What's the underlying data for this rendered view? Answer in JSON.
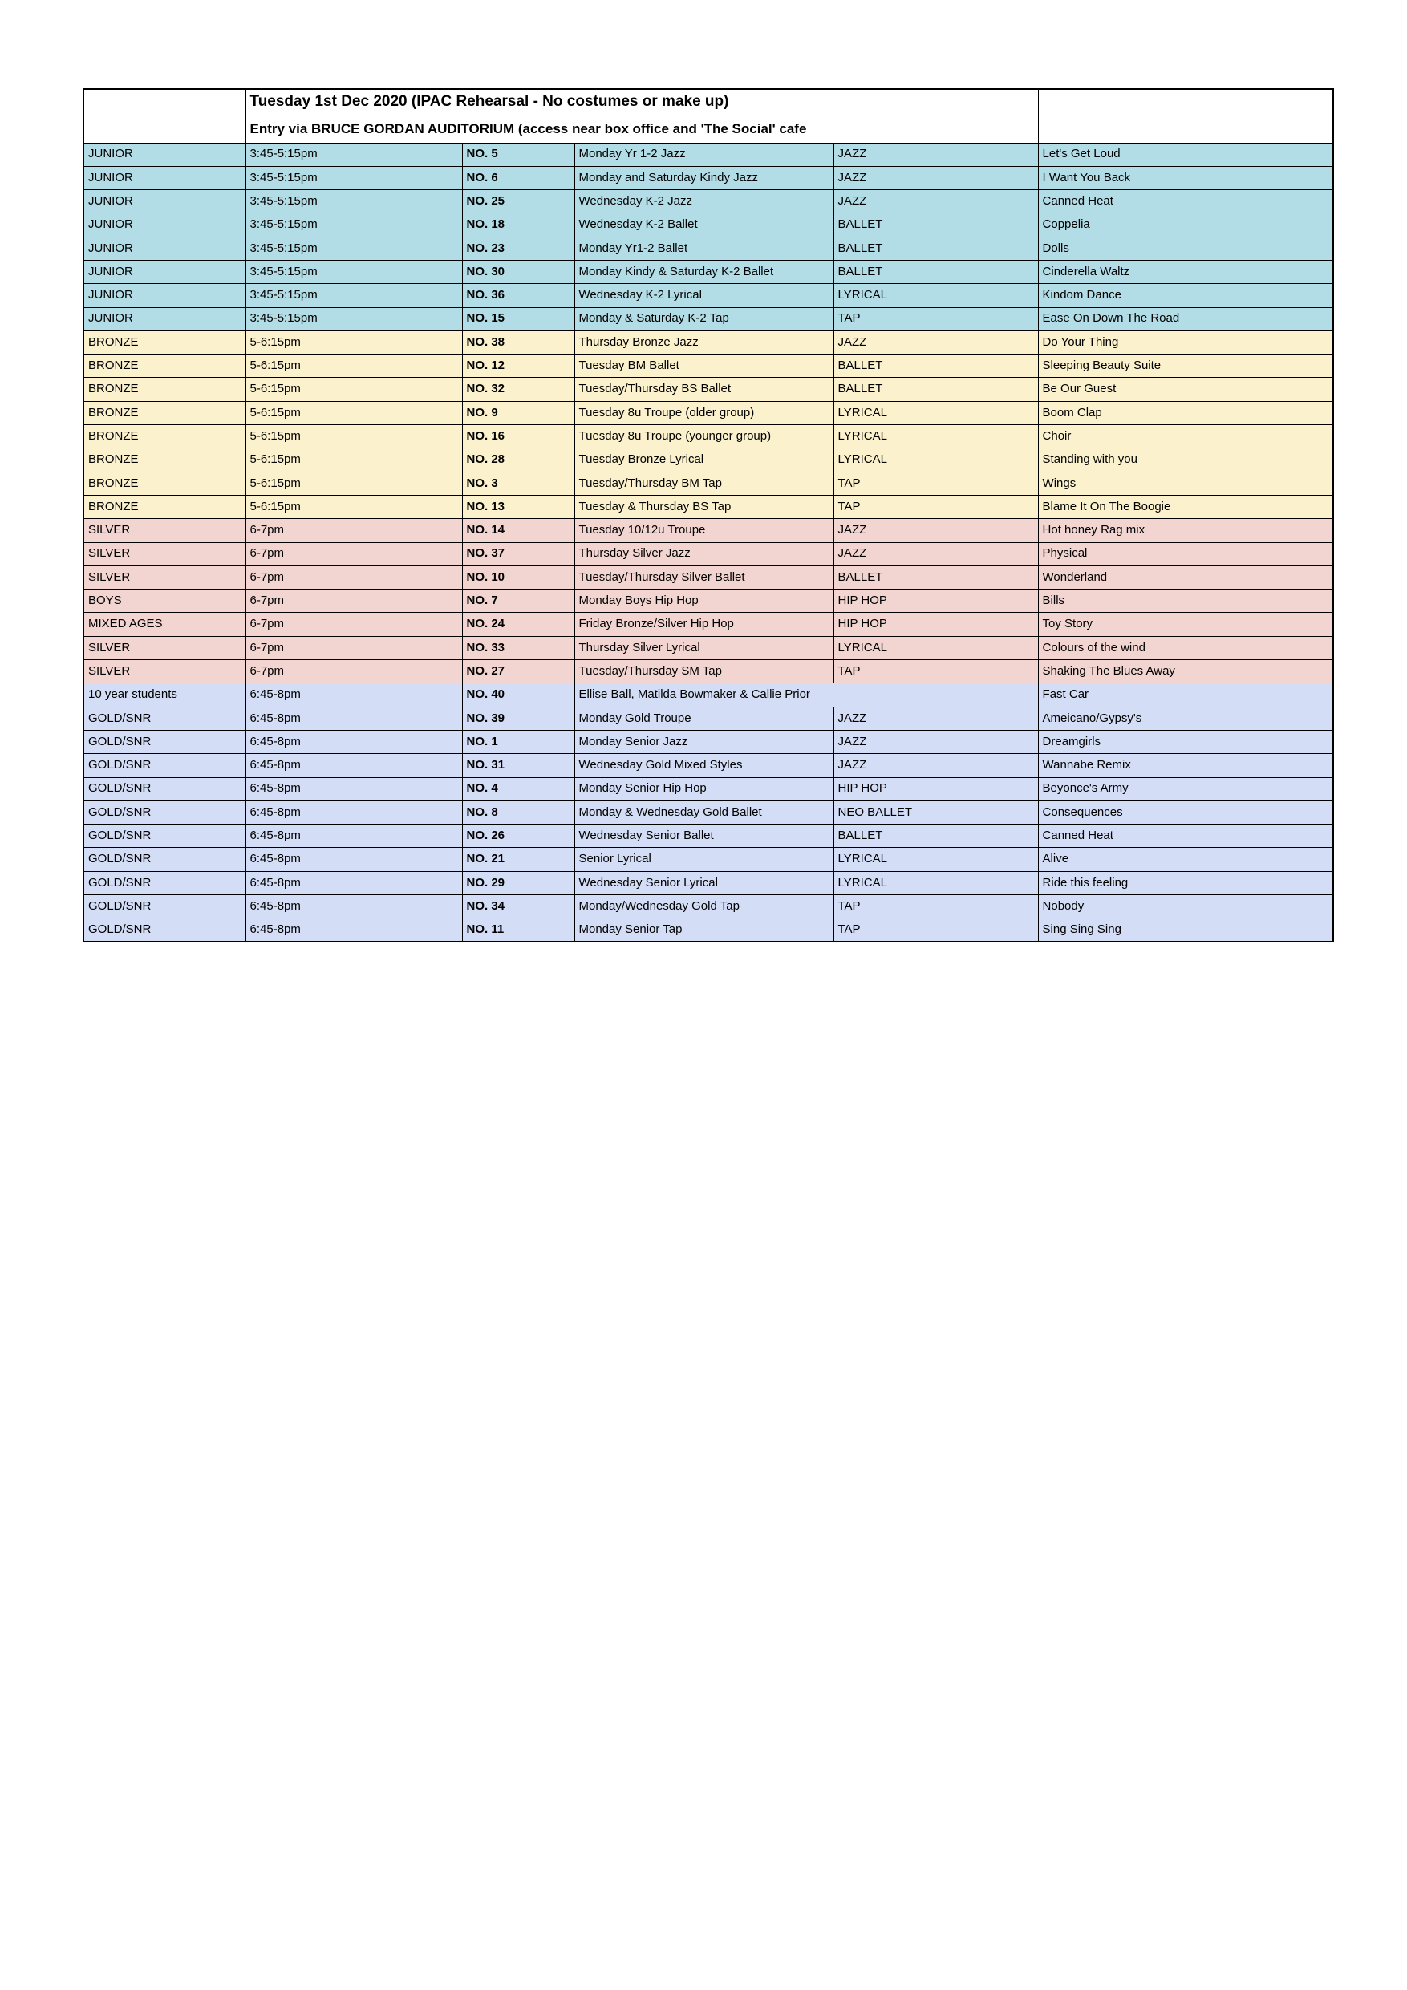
{
  "header": {
    "line1": "Tuesday 1st Dec 2020 (IPAC Rehearsal - No costumes or make up)",
    "line2": "Entry via BRUCE GORDAN AUDITORIUM (access near box office and 'The Social' cafe"
  },
  "band_colors": {
    "junior": "#b3dde6",
    "bronze": "#fbf1cc",
    "silver": "#f2d5d0",
    "gold": "#d3ddf6"
  },
  "rows": [
    {
      "group": "JUNIOR",
      "time": "3:45-5:15pm",
      "no": "NO. 5",
      "class": "Monday Yr 1-2 Jazz",
      "style": "JAZZ",
      "song": "Let's Get Loud",
      "band": "junior"
    },
    {
      "group": "JUNIOR",
      "time": "3:45-5:15pm",
      "no": "NO. 6",
      "class": "Monday and Saturday Kindy Jazz",
      "style": "JAZZ",
      "song": "I Want You Back",
      "band": "junior"
    },
    {
      "group": "JUNIOR",
      "time": "3:45-5:15pm",
      "no": "NO. 25",
      "class": "Wednesday K-2 Jazz",
      "style": "JAZZ",
      "song": "Canned Heat",
      "band": "junior"
    },
    {
      "group": "JUNIOR",
      "time": "3:45-5:15pm",
      "no": "NO. 18",
      "class": "Wednesday K-2 Ballet",
      "style": "BALLET",
      "song": "Coppelia",
      "band": "junior"
    },
    {
      "group": "JUNIOR",
      "time": "3:45-5:15pm",
      "no": "NO. 23",
      "class": "Monday Yr1-2 Ballet",
      "style": "BALLET",
      "song": "Dolls",
      "band": "junior"
    },
    {
      "group": "JUNIOR",
      "time": "3:45-5:15pm",
      "no": "NO. 30",
      "class": "Monday Kindy & Saturday K-2 Ballet",
      "style": "BALLET",
      "song": "Cinderella Waltz",
      "band": "junior"
    },
    {
      "group": "JUNIOR",
      "time": "3:45-5:15pm",
      "no": "NO. 36",
      "class": "Wednesday K-2 Lyrical",
      "style": "LYRICAL",
      "song": "Kindom Dance",
      "band": "junior"
    },
    {
      "group": "JUNIOR",
      "time": "3:45-5:15pm",
      "no": "NO. 15",
      "class": "Monday & Saturday K-2 Tap",
      "style": "TAP",
      "song": "Ease On Down The Road",
      "band": "junior"
    },
    {
      "group": "BRONZE",
      "time": "5-6:15pm",
      "no": "NO. 38",
      "class": "Thursday Bronze Jazz",
      "style": "JAZZ",
      "song": "Do Your Thing",
      "band": "bronze"
    },
    {
      "group": "BRONZE",
      "time": "5-6:15pm",
      "no": "NO. 12",
      "class": "Tuesday BM Ballet",
      "style": "BALLET",
      "song": "Sleeping Beauty Suite",
      "band": "bronze"
    },
    {
      "group": "BRONZE",
      "time": "5-6:15pm",
      "no": "NO. 32",
      "class": "Tuesday/Thursday BS Ballet",
      "style": "BALLET",
      "song": "Be Our Guest",
      "band": "bronze"
    },
    {
      "group": "BRONZE",
      "time": "5-6:15pm",
      "no": "NO. 9",
      "class": "Tuesday 8u Troupe (older group)",
      "style": "LYRICAL",
      "song": "Boom Clap",
      "band": "bronze"
    },
    {
      "group": "BRONZE",
      "time": "5-6:15pm",
      "no": "NO. 16",
      "class": "Tuesday 8u Troupe (younger group)",
      "style": "LYRICAL",
      "song": "Choir",
      "band": "bronze"
    },
    {
      "group": "BRONZE",
      "time": "5-6:15pm",
      "no": "NO. 28",
      "class": "Tuesday Bronze Lyrical",
      "style": "LYRICAL",
      "song": "Standing with you",
      "band": "bronze"
    },
    {
      "group": "BRONZE",
      "time": "5-6:15pm",
      "no": "NO. 3",
      "class": "Tuesday/Thursday BM Tap",
      "style": "TAP",
      "song": "Wings",
      "band": "bronze"
    },
    {
      "group": "BRONZE",
      "time": "5-6:15pm",
      "no": "NO. 13",
      "class": "Tuesday & Thursday BS Tap",
      "style": "TAP",
      "song": "Blame It On The Boogie",
      "band": "bronze"
    },
    {
      "group": "SILVER",
      "time": "6-7pm",
      "no": "NO. 14",
      "class": "Tuesday 10/12u Troupe",
      "style": "JAZZ",
      "song": "Hot honey Rag mix",
      "band": "silver"
    },
    {
      "group": "SILVER",
      "time": "6-7pm",
      "no": "NO. 37",
      "class": "Thursday Silver Jazz",
      "style": "JAZZ",
      "song": "Physical",
      "band": "silver"
    },
    {
      "group": "SILVER",
      "time": "6-7pm",
      "no": "NO. 10",
      "class": "Tuesday/Thursday Silver Ballet",
      "style": "BALLET",
      "song": "Wonderland",
      "band": "silver"
    },
    {
      "group": "BOYS",
      "time": "6-7pm",
      "no": "NO. 7",
      "class": "Monday Boys Hip Hop",
      "style": "HIP HOP",
      "song": "Bills",
      "band": "silver"
    },
    {
      "group": "MIXED AGES",
      "time": "6-7pm",
      "no": "NO. 24",
      "class": "Friday Bronze/Silver Hip Hop",
      "style": "HIP HOP",
      "song": "Toy Story",
      "band": "silver"
    },
    {
      "group": "SILVER",
      "time": "6-7pm",
      "no": "NO. 33",
      "class": "Thursday Silver Lyrical",
      "style": "LYRICAL",
      "song": "Colours of the wind",
      "band": "silver"
    },
    {
      "group": "SILVER",
      "time": "6-7pm",
      "no": "NO. 27",
      "class": "Tuesday/Thursday SM Tap",
      "style": "TAP",
      "song": "Shaking The Blues Away",
      "band": "silver"
    },
    {
      "group": "10 year students",
      "time": "6:45-8pm",
      "no": "NO. 40",
      "class": "Ellise Ball, Matilda Bowmaker & Callie Prior",
      "style": null,
      "song": "Fast Car",
      "band": "gold"
    },
    {
      "group": "GOLD/SNR",
      "time": "6:45-8pm",
      "no": "NO. 39",
      "class": "Monday Gold Troupe",
      "style": "JAZZ",
      "song": "Ameicano/Gypsy's",
      "band": "gold"
    },
    {
      "group": "GOLD/SNR",
      "time": "6:45-8pm",
      "no": "NO. 1",
      "class": "Monday Senior Jazz",
      "style": "JAZZ",
      "song": "Dreamgirls",
      "band": "gold"
    },
    {
      "group": "GOLD/SNR",
      "time": "6:45-8pm",
      "no": "NO. 31",
      "class": "Wednesday Gold Mixed Styles",
      "style": "JAZZ",
      "song": "Wannabe Remix",
      "band": "gold"
    },
    {
      "group": "GOLD/SNR",
      "time": "6:45-8pm",
      "no": "NO. 4",
      "class": "Monday Senior Hip Hop",
      "style": "HIP HOP",
      "song": "Beyonce's Army",
      "band": "gold"
    },
    {
      "group": "GOLD/SNR",
      "time": "6:45-8pm",
      "no": "NO. 8",
      "class": "Monday & Wednesday Gold Ballet",
      "style": "NEO BALLET",
      "song": "Consequences",
      "band": "gold"
    },
    {
      "group": "GOLD/SNR",
      "time": "6:45-8pm",
      "no": "NO. 26",
      "class": "Wednesday Senior Ballet",
      "style": "BALLET",
      "song": "Canned Heat",
      "band": "gold"
    },
    {
      "group": "GOLD/SNR",
      "time": "6:45-8pm",
      "no": "NO. 21",
      "class": "Senior Lyrical",
      "style": "LYRICAL",
      "song": "Alive",
      "band": "gold"
    },
    {
      "group": "GOLD/SNR",
      "time": "6:45-8pm",
      "no": "NO. 29",
      "class": "Wednesday Senior Lyrical",
      "style": "LYRICAL",
      "song": "Ride this feeling",
      "band": "gold"
    },
    {
      "group": "GOLD/SNR",
      "time": "6:45-8pm",
      "no": "NO. 34",
      "class": "Monday/Wednesday Gold Tap",
      "style": "TAP",
      "song": "Nobody",
      "band": "gold"
    },
    {
      "group": "GOLD/SNR",
      "time": "6:45-8pm",
      "no": "NO. 11",
      "class": "Monday Senior Tap",
      "style": "TAP",
      "song": "Sing Sing Sing",
      "band": "gold"
    }
  ]
}
